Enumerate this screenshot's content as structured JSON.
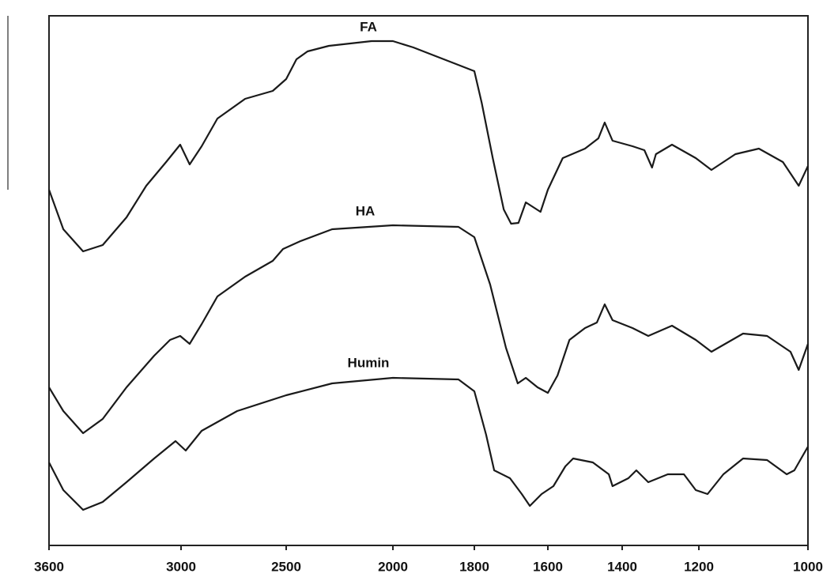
{
  "chart_data": {
    "type": "line",
    "xlim": [
      3600,
      1000
    ],
    "xticks": [
      3600,
      3000,
      2500,
      2000,
      1800,
      1600,
      1400,
      1200,
      1000
    ],
    "ylim": [
      0,
      670
    ],
    "color": "#1a1a1a",
    "series": [
      {
        "name": "FA",
        "x": [
          3600,
          3535,
          3445,
          3356,
          3248,
          3158,
          3068,
          3004,
          2959,
          2902,
          2827,
          2695,
          2564,
          2500,
          2452,
          2400,
          2300,
          2200,
          2100,
          2000,
          1950,
          1900,
          1850,
          1800,
          1780,
          1750,
          1720,
          1700,
          1680,
          1660,
          1640,
          1620,
          1600,
          1560,
          1500,
          1464,
          1447,
          1426,
          1373,
          1342,
          1322,
          1312,
          1270,
          1208,
          1177,
          1133,
          1090,
          1046,
          1017,
          1000
        ],
        "values": [
          450,
          400,
          372,
          380,
          415,
          455,
          485,
          507,
          482,
          505,
          540,
          565,
          575,
          590,
          615,
          625,
          632,
          635,
          638,
          638,
          630,
          620,
          610,
          600,
          560,
          490,
          425,
          407,
          408,
          434,
          428,
          422,
          450,
          490,
          502,
          515,
          535,
          512,
          505,
          500,
          478,
          495,
          507,
          490,
          475,
          495,
          502,
          485,
          455,
          480
        ]
      },
      {
        "name": "HA",
        "x": [
          3600,
          3535,
          3445,
          3356,
          3248,
          3122,
          3050,
          3004,
          2959,
          2902,
          2827,
          2695,
          2564,
          2515,
          2433,
          2285,
          2000,
          1839,
          1800,
          1757,
          1714,
          1682,
          1660,
          1628,
          1600,
          1574,
          1542,
          1500,
          1468,
          1447,
          1426,
          1373,
          1332,
          1270,
          1208,
          1177,
          1119,
          1075,
          1032,
          1017,
          1000
        ],
        "values": [
          200,
          170,
          142,
          160,
          200,
          240,
          260,
          265,
          255,
          280,
          315,
          340,
          360,
          375,
          385,
          400,
          405,
          403,
          390,
          330,
          250,
          205,
          212,
          200,
          193,
          215,
          260,
          275,
          282,
          305,
          285,
          275,
          265,
          278,
          260,
          245,
          268,
          265,
          245,
          222,
          255
        ]
      },
      {
        "name": "Humin",
        "x": [
          3600,
          3535,
          3445,
          3356,
          3248,
          3122,
          3025,
          2978,
          2902,
          2733,
          2500,
          2285,
          2000,
          1839,
          1800,
          1768,
          1746,
          1703,
          1671,
          1649,
          1617,
          1585,
          1553,
          1532,
          1479,
          1436,
          1426,
          1384,
          1363,
          1332,
          1281,
          1239,
          1208,
          1184,
          1155,
          1119,
          1075,
          1039,
          1025,
          1000
        ],
        "values": [
          105,
          70,
          45,
          55,
          80,
          110,
          132,
          120,
          145,
          170,
          190,
          205,
          212,
          210,
          195,
          140,
          95,
          85,
          65,
          50,
          65,
          75,
          100,
          110,
          105,
          90,
          75,
          85,
          95,
          80,
          90,
          90,
          70,
          65,
          90,
          110,
          108,
          90,
          95,
          125
        ]
      }
    ]
  }
}
